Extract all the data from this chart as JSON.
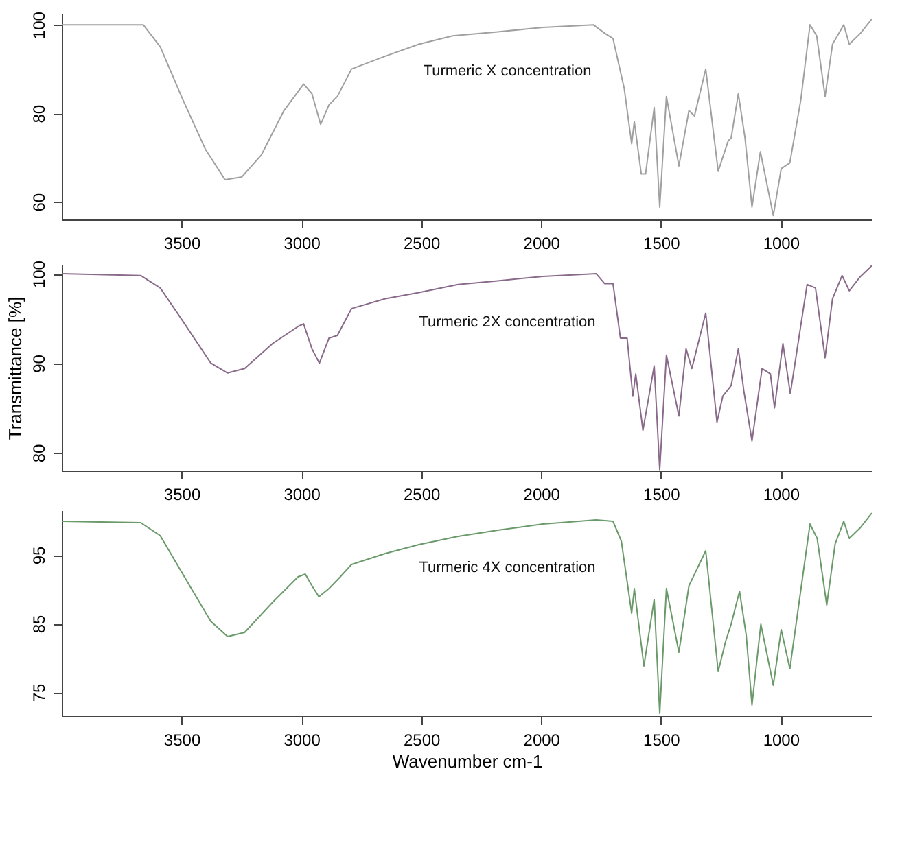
{
  "chart_data": [
    {
      "type": "line",
      "xlim": [
        4000,
        620
      ],
      "xticks": [
        3500,
        3000,
        2500,
        2000,
        1500,
        1000
      ],
      "ylim": [
        56,
        102.5
      ],
      "yticks": [
        60,
        80,
        100
      ],
      "grid": false,
      "annotations": [
        "Turmeric X concentration"
      ],
      "series": [
        {
          "color": "#a0a0a0",
          "x": [
            4000,
            3660,
            3589,
            3495,
            3401,
            3319,
            3249,
            3167,
            3073,
            2991,
            2956,
            2920,
            2885,
            2850,
            2791,
            2650,
            2510,
            2369,
            2181,
            1993,
            1782,
            1735,
            1700,
            1653,
            1622,
            1611,
            1582,
            1564,
            1528,
            1505,
            1477,
            1425,
            1383,
            1360,
            1313,
            1261,
            1219,
            1207,
            1177,
            1149,
            1120,
            1085,
            1031,
            998,
            962,
            916,
            878,
            850,
            815,
            784,
            737,
            714,
            667,
            620
          ],
          "values": [
            100,
            100,
            95,
            83.1,
            71.9,
            65,
            65.6,
            70.6,
            80.6,
            86.6,
            84.4,
            77.5,
            81.9,
            83.8,
            90,
            92.9,
            95.6,
            97.5,
            98.4,
            99.4,
            100,
            98.1,
            96.9,
            85.6,
            73.1,
            78.1,
            66.3,
            66.3,
            81.3,
            58.8,
            83.8,
            68.1,
            80.6,
            79.4,
            90,
            66.9,
            73.8,
            74.4,
            84.4,
            74.4,
            58.8,
            71.3,
            56.9,
            67.5,
            68.8,
            83.1,
            100,
            97.5,
            83.8,
            95.6,
            100,
            95.6,
            98.1,
            101.3
          ]
        }
      ]
    },
    {
      "type": "line",
      "ylabel": "Transmittance [%]",
      "xlim": [
        4000,
        620
      ],
      "xticks": [
        3500,
        3000,
        2500,
        2000,
        1500,
        1000
      ],
      "ylim": [
        78,
        101
      ],
      "yticks": [
        80,
        90,
        100
      ],
      "grid": false,
      "annotations": [
        "Turmeric 2X concentration"
      ],
      "series": [
        {
          "color": "#8a6a8a",
          "x": [
            4000,
            3671,
            3589,
            3495,
            3378,
            3308,
            3237,
            3120,
            3014,
            2991,
            2956,
            2925,
            2885,
            2850,
            2791,
            2650,
            2510,
            2346,
            2181,
            1993,
            1770,
            1735,
            1700,
            1669,
            1641,
            1617,
            1605,
            1575,
            1528,
            1505,
            1477,
            1425,
            1395,
            1371,
            1313,
            1266,
            1242,
            1207,
            1177,
            1154,
            1120,
            1078,
            1043,
            1026,
            991,
            960,
            890,
            855,
            815,
            784,
            744,
            714,
            667,
            620
          ],
          "values": [
            100,
            99.8,
            98.4,
            94.7,
            90,
            88.9,
            89.4,
            92.2,
            94.1,
            94.4,
            91.6,
            90,
            92.8,
            93.1,
            96.1,
            97.2,
            97.9,
            98.8,
            99.2,
            99.7,
            100,
            98.9,
            98.9,
            92.8,
            92.8,
            86.3,
            88.8,
            82.5,
            89.7,
            78.1,
            90.9,
            84.1,
            91.6,
            89.4,
            95.6,
            83.4,
            86.3,
            87.5,
            91.6,
            86.9,
            81.3,
            89.4,
            88.8,
            85,
            92.2,
            86.6,
            98.8,
            98.4,
            90.6,
            97.2,
            99.8,
            98.1,
            99.7,
            100.9
          ]
        }
      ]
    },
    {
      "type": "line",
      "xlabel": "Wavenumber cm-1",
      "xlim": [
        4000,
        620
      ],
      "xticks": [
        3500,
        3000,
        2500,
        2000,
        1500,
        1000
      ],
      "ylim": [
        71.5,
        101.5
      ],
      "yticks": [
        75,
        85,
        95
      ],
      "grid": false,
      "annotations": [
        "Turmeric 4X concentration"
      ],
      "series": [
        {
          "color": "#6a9a6a",
          "x": [
            4000,
            3671,
            3589,
            3495,
            3378,
            3308,
            3237,
            3120,
            3014,
            2984,
            2956,
            2927,
            2885,
            2838,
            2791,
            2650,
            2510,
            2346,
            2181,
            1993,
            1770,
            1700,
            1665,
            1622,
            1611,
            1571,
            1528,
            1505,
            1477,
            1425,
            1383,
            1313,
            1261,
            1230,
            1207,
            1172,
            1144,
            1120,
            1083,
            1031,
            998,
            962,
            878,
            848,
            808,
            773,
            737,
            714,
            667,
            620
          ],
          "values": [
            99.9,
            99.7,
            97.8,
            92.2,
            85.3,
            83.1,
            83.7,
            88.1,
            91.8,
            92.2,
            90.5,
            88.9,
            90.1,
            91.8,
            93.6,
            95.2,
            96.5,
            97.7,
            98.6,
            99.5,
            100.1,
            99.9,
            97,
            86.5,
            90.1,
            78.8,
            88.5,
            71.9,
            90.1,
            80.8,
            90.5,
            95.6,
            78,
            82.4,
            84.9,
            89.7,
            83.3,
            73.1,
            84.9,
            76,
            84.1,
            78.4,
            99.5,
            97.4,
            87.7,
            96.6,
            99.9,
            97.4,
            99,
            101.1
          ]
        }
      ]
    }
  ]
}
